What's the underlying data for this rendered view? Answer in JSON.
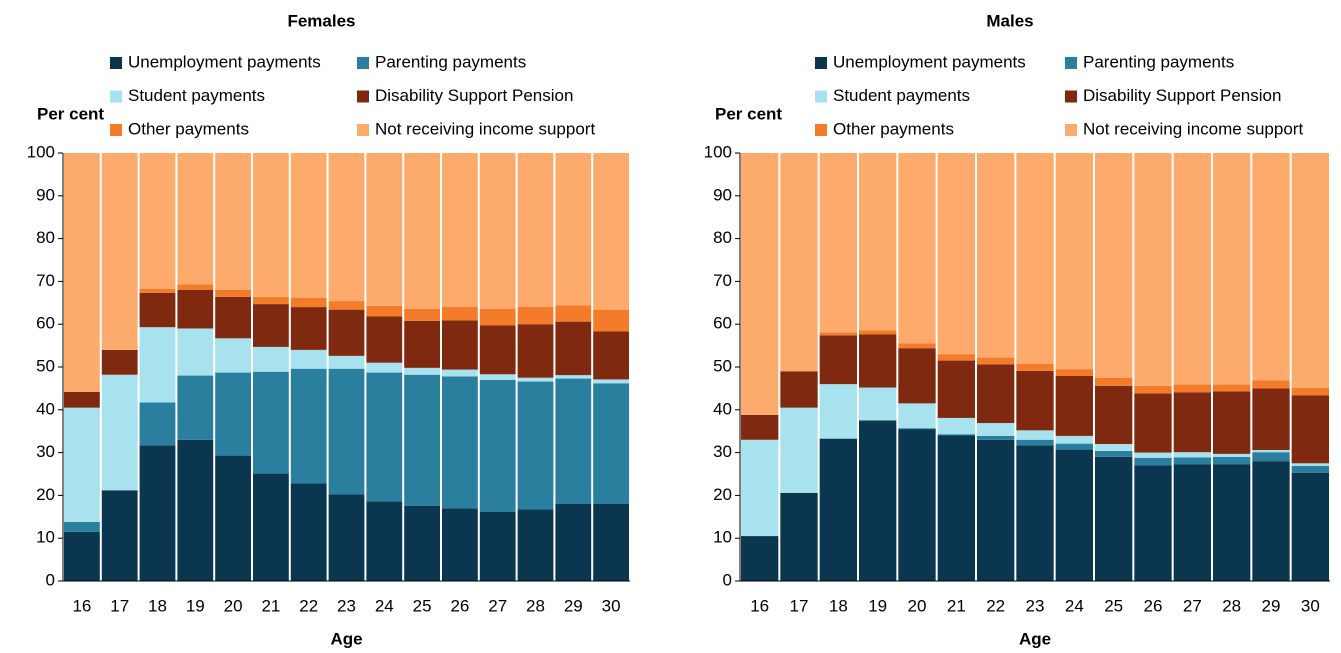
{
  "chart_data": [
    {
      "type": "stacked_bar",
      "title": "Females",
      "y_label": "Per cent",
      "x_label": "Age",
      "categories": [
        "16",
        "17",
        "18",
        "19",
        "20",
        "21",
        "22",
        "23",
        "24",
        "25",
        "26",
        "27",
        "28",
        "29",
        "30"
      ],
      "ylim": [
        0,
        100
      ],
      "yticks": [
        0,
        10,
        20,
        30,
        40,
        50,
        60,
        70,
        80,
        90,
        100
      ],
      "series": [
        {
          "name": "Unemployment payments",
          "color": "#0b3650",
          "values": [
            11.5,
            21.2,
            31.7,
            33,
            29.3,
            25.1,
            22.8,
            20.2,
            18.6,
            17.6,
            17,
            16.2,
            16.7,
            18,
            18
          ]
        },
        {
          "name": "Parenting payments",
          "color": "#2a7f9e",
          "values": [
            2.3,
            0,
            10,
            15,
            19.4,
            23.8,
            26.8,
            29.4,
            30.1,
            30.6,
            30.8,
            30.8,
            29.9,
            29.3,
            28.2
          ]
        },
        {
          "name": "Student payments",
          "color": "#a8e2ee",
          "values": [
            26.7,
            27,
            17.6,
            11,
            8,
            5.8,
            4.4,
            3,
            2.3,
            1.6,
            1.6,
            1.3,
            0.9,
            0.8,
            0.9
          ]
        },
        {
          "name": "Disability Support Pension",
          "color": "#7f2a10",
          "values": [
            3.7,
            5.8,
            8,
            9,
            9.7,
            10,
            10,
            10.8,
            10.8,
            11,
            11.5,
            11.4,
            12.5,
            12.5,
            11.2
          ]
        },
        {
          "name": "Other payments",
          "color": "#f47b2a",
          "values": [
            0,
            0,
            1,
            1.3,
            1.6,
            1.7,
            2.2,
            2,
            2.5,
            2.8,
            3.2,
            3.9,
            4.1,
            3.8,
            5.1
          ]
        },
        {
          "name": "Not receiving income support",
          "color": "#fcab6c",
          "values": [
            55.8,
            46,
            31.7,
            30.7,
            32,
            33.6,
            33.8,
            34.6,
            35.7,
            36.4,
            35.9,
            36.4,
            35.9,
            35.6,
            36.6
          ]
        }
      ]
    },
    {
      "type": "stacked_bar",
      "title": "Males",
      "y_label": "Per cent",
      "x_label": "Age",
      "categories": [
        "16",
        "17",
        "18",
        "19",
        "20",
        "21",
        "22",
        "23",
        "24",
        "25",
        "26",
        "27",
        "28",
        "29",
        "30"
      ],
      "ylim": [
        0,
        100
      ],
      "yticks": [
        0,
        10,
        20,
        30,
        40,
        50,
        60,
        70,
        80,
        90,
        100
      ],
      "series": [
        {
          "name": "Unemployment payments",
          "color": "#0b3650",
          "values": [
            10.5,
            20.6,
            33.2,
            37.5,
            35.5,
            34,
            33,
            31.7,
            30.7,
            29,
            27,
            27.3,
            27.3,
            28,
            25.3
          ]
        },
        {
          "name": "Parenting payments",
          "color": "#2a7f9e",
          "values": [
            0,
            0,
            0.1,
            0,
            0.2,
            0.3,
            0.9,
            1.3,
            1.4,
            1.4,
            1.8,
            1.6,
            1.7,
            2.1,
            1.6
          ]
        },
        {
          "name": "Student payments",
          "color": "#a8e2ee",
          "values": [
            22.5,
            19.9,
            12.7,
            7.7,
            5.8,
            3.8,
            3,
            2.2,
            1.8,
            1.6,
            1.2,
            1.2,
            0.7,
            0.5,
            0.6
          ]
        },
        {
          "name": "Disability Support Pension",
          "color": "#7f2a10",
          "values": [
            5.8,
            8.5,
            11.4,
            12.4,
            12.9,
            13.4,
            13.7,
            13.9,
            14,
            13.6,
            13.8,
            14,
            14.6,
            14.4,
            15.9
          ]
        },
        {
          "name": "Other payments",
          "color": "#f47b2a",
          "values": [
            0,
            0,
            0.7,
            1,
            1.1,
            1.5,
            1.6,
            1.6,
            1.6,
            1.9,
            1.8,
            1.8,
            1.6,
            1.9,
            1.7
          ]
        },
        {
          "name": "Not receiving income support",
          "color": "#fcab6c",
          "values": [
            61.2,
            51,
            41.9,
            41.4,
            44.5,
            47,
            47.8,
            49.3,
            50.5,
            52.5,
            54.4,
            54.1,
            54.1,
            53.1,
            54.9
          ]
        }
      ]
    }
  ]
}
